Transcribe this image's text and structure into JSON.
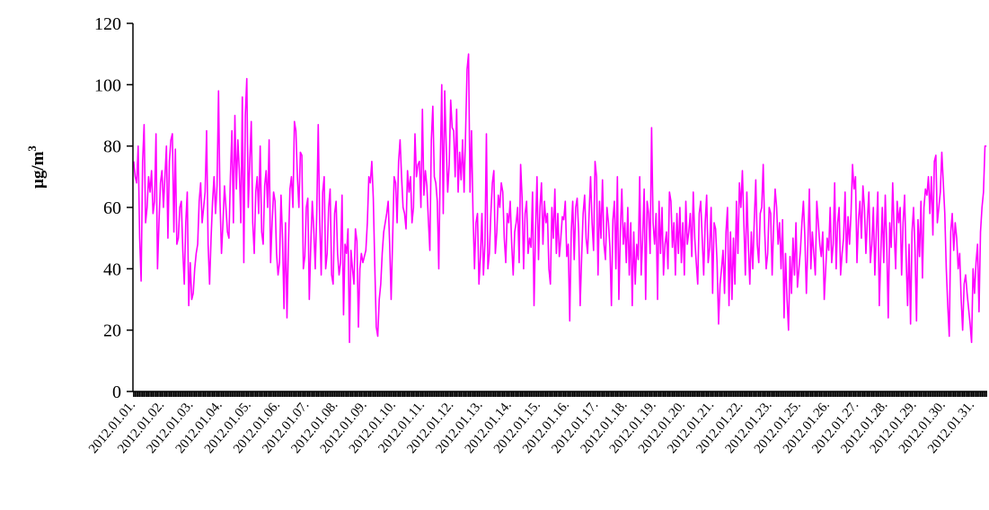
{
  "chart_data": {
    "type": "line",
    "title": "",
    "xlabel": "",
    "ylabel": "μg/m",
    "ylabel_superscript": "3",
    "ylim": [
      0,
      120
    ],
    "yticks": [
      0,
      20,
      40,
      60,
      80,
      100,
      120
    ],
    "grid": false,
    "legend": "none",
    "colors": {
      "series": "#ff00ff",
      "axis": "#000000",
      "background": "#ffffff"
    },
    "x_tick_labels": [
      "2012.01.01.",
      "2012.01.02.",
      "2012.01.03.",
      "2012.01.04.",
      "2012.01.05.",
      "2012.01.06.",
      "2012.01.07.",
      "2012.01.08.",
      "2012.01.09.",
      "2012.01.10.",
      "2012.01.11.",
      "2012.01.12.",
      "2012.01.13.",
      "2012.01.14.",
      "2012.01.15.",
      "2012.01.16.",
      "2012.01.17.",
      "2012.01.18.",
      "2012.01.19.",
      "2012.01.20.",
      "2012.01.21.",
      "2012.01.22.",
      "2012.01.23.",
      "2012.01.25.",
      "2012.01.26.",
      "2012.01.27.",
      "2012.01.28.",
      "2012.01.29.",
      "2012.01.30.",
      "2012.01.31."
    ],
    "series": [
      {
        "values": [
          75,
          70,
          68,
          80,
          50,
          36,
          75,
          87,
          55,
          60,
          70,
          65,
          72,
          58,
          62,
          84,
          40,
          55,
          68,
          72,
          60,
          70,
          80,
          50,
          75,
          82,
          84,
          52,
          79,
          48,
          50,
          60,
          62,
          46,
          35,
          55,
          65,
          28,
          42,
          30,
          32,
          40,
          45,
          48,
          62,
          68,
          55,
          60,
          65,
          85,
          48,
          35,
          50,
          62,
          70,
          58,
          67,
          98,
          62,
          45,
          55,
          67,
          60,
          52,
          50,
          70,
          85,
          55,
          90,
          66,
          82,
          72,
          55,
          96,
          42,
          90,
          102,
          60,
          75,
          88,
          55,
          45,
          65,
          70,
          58,
          80,
          52,
          48,
          67,
          72,
          60,
          82,
          42,
          55,
          65,
          62,
          45,
          38,
          42,
          64,
          50,
          27,
          55,
          24,
          48,
          66,
          70,
          60,
          88,
          85,
          70,
          60,
          78,
          77,
          40,
          44,
          60,
          63,
          30,
          48,
          62,
          53,
          40,
          58,
          87,
          55,
          38,
          65,
          70,
          40,
          45,
          60,
          66,
          38,
          35,
          58,
          62,
          45,
          38,
          42,
          64,
          25,
          48,
          45,
          53,
          16,
          46,
          40,
          35,
          53,
          49,
          21,
          40,
          45,
          42,
          44,
          46,
          55,
          70,
          68,
          75,
          63,
          41,
          21,
          18,
          30,
          35,
          45,
          52,
          55,
          58,
          62,
          48,
          30,
          50,
          70,
          68,
          55,
          75,
          82,
          70,
          60,
          58,
          53,
          72,
          65,
          70,
          55,
          60,
          84,
          70,
          74,
          75,
          60,
          92,
          64,
          72,
          67,
          56,
          46,
          82,
          93,
          70,
          68,
          62,
          40,
          74,
          100,
          58,
          98,
          80,
          65,
          74,
          95,
          86,
          85,
          70,
          92,
          65,
          78,
          69,
          82,
          65,
          84,
          105,
          110,
          65,
          85,
          58,
          40,
          55,
          58,
          35,
          44,
          58,
          38,
          48,
          84,
          40,
          45,
          58,
          68,
          72,
          45,
          52,
          64,
          60,
          68,
          65,
          50,
          42,
          58,
          55,
          62,
          48,
          38,
          52,
          55,
          60,
          42,
          74,
          63,
          40,
          58,
          62,
          45,
          50,
          47,
          65,
          28,
          52,
          70,
          43,
          60,
          68,
          48,
          62,
          55,
          58,
          40,
          35,
          60,
          50,
          66,
          45,
          58,
          44,
          50,
          57,
          56,
          62,
          44,
          48,
          23,
          52,
          62,
          43,
          60,
          63,
          52,
          28,
          44,
          58,
          64,
          50,
          45,
          58,
          70,
          55,
          46,
          75,
          70,
          38,
          62,
          50,
          69,
          48,
          43,
          60,
          55,
          47,
          28,
          56,
          62,
          40,
          70,
          30,
          52,
          66,
          48,
          55,
          42,
          60,
          38,
          55,
          28,
          52,
          35,
          48,
          43,
          70,
          38,
          50,
          66,
          30,
          62,
          58,
          45,
          86,
          55,
          48,
          58,
          30,
          62,
          45,
          60,
          38,
          48,
          52,
          40,
          65,
          62,
          47,
          55,
          38,
          58,
          45,
          60,
          42,
          55,
          38,
          62,
          48,
          52,
          58,
          44,
          65,
          50,
          42,
          35,
          58,
          62,
          50,
          38,
          55,
          64,
          42,
          47,
          60,
          32,
          55,
          53,
          42,
          22,
          35,
          40,
          46,
          32,
          52,
          60,
          28,
          52,
          30,
          50,
          35,
          62,
          45,
          68,
          60,
          72,
          55,
          38,
          65,
          48,
          35,
          52,
          40,
          56,
          69,
          48,
          42,
          58,
          60,
          74,
          52,
          40,
          45,
          60,
          58,
          38,
          54,
          66,
          60,
          48,
          55,
          40,
          56,
          24,
          45,
          30,
          20,
          44,
          32,
          50,
          38,
          55,
          34,
          40,
          46,
          55,
          62,
          50,
          32,
          48,
          66,
          40,
          52,
          45,
          38,
          62,
          55,
          48,
          44,
          52,
          30,
          40,
          50,
          46,
          60,
          42,
          48,
          68,
          40,
          55,
          60,
          38,
          45,
          50,
          65,
          42,
          57,
          48,
          58,
          74,
          66,
          70,
          42,
          56,
          62,
          50,
          67,
          60,
          45,
          56,
          65,
          42,
          48,
          60,
          38,
          52,
          65,
          28,
          45,
          60,
          42,
          64,
          48,
          24,
          55,
          47,
          68,
          52,
          40,
          62,
          55,
          60,
          38,
          55,
          64,
          44,
          28,
          48,
          22,
          52,
          60,
          46,
          23,
          56,
          44,
          62,
          37,
          60,
          66,
          64,
          70,
          58,
          70,
          51,
          75,
          77,
          55,
          60,
          65,
          78,
          68,
          58,
          40,
          28,
          18,
          52,
          58,
          46,
          55,
          50,
          40,
          45,
          30,
          20,
          35,
          38,
          32,
          27,
          22,
          16,
          40,
          32,
          42,
          48,
          26,
          52,
          60,
          65,
          80,
          80
        ]
      }
    ]
  }
}
